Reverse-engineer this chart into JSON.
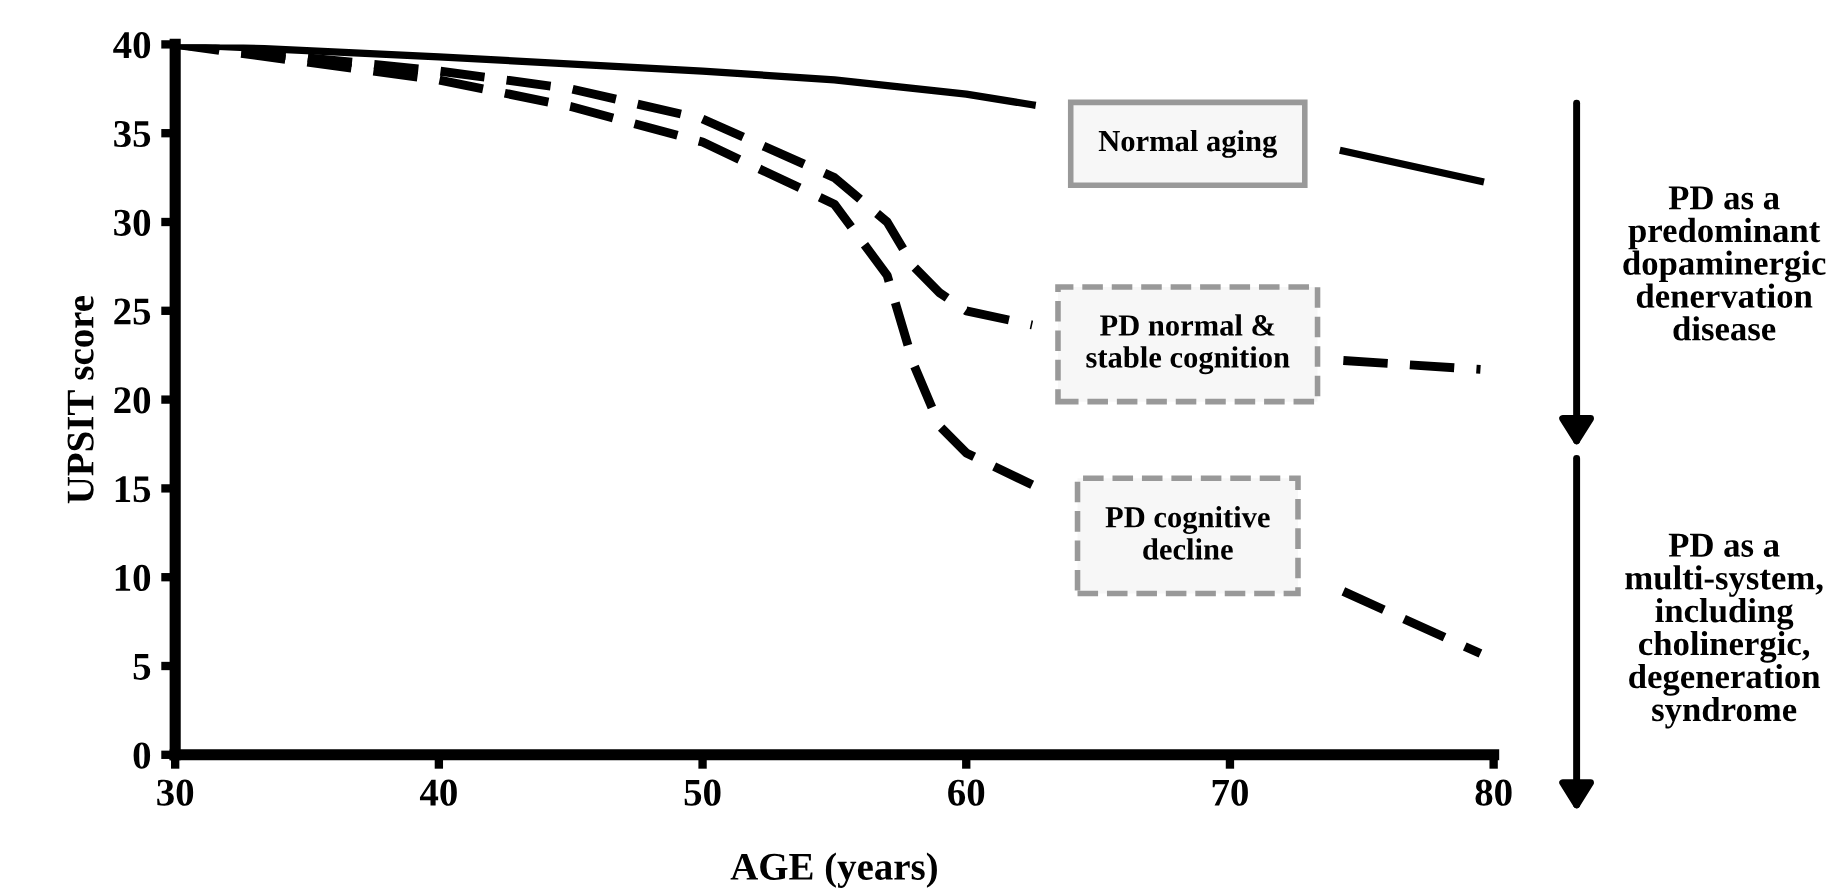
{
  "chart_data": {
    "type": "line",
    "xlabel": "AGE (years)",
    "ylabel": "UPSIT score",
    "xlim": [
      30,
      80
    ],
    "ylim": [
      0,
      40
    ],
    "xticks": [
      30,
      40,
      50,
      60,
      70,
      80
    ],
    "yticks": [
      0,
      5,
      10,
      15,
      20,
      25,
      30,
      35,
      40
    ],
    "grid": false,
    "legend": false,
    "marker": "none",
    "series": [
      {
        "color": "#000000",
        "line_style": "solid",
        "x": [
          30,
          40,
          50,
          55,
          60,
          62.5,
          68,
          74.3,
          79.5
        ],
        "values": [
          40,
          39.3,
          38.5,
          38,
          37.2,
          36.6,
          null,
          34,
          32.3
        ]
      },
      {
        "color": "#000000",
        "line_style": "dashed",
        "x": [
          30,
          40,
          45,
          50,
          55,
          57,
          58,
          59,
          60,
          62.5,
          68,
          74.3,
          79.5
        ],
        "values": [
          40,
          38.5,
          37.5,
          35.8,
          32.5,
          30,
          27.5,
          26,
          25,
          24.2,
          null,
          22.2,
          21.7
        ]
      },
      {
        "color": "#000000",
        "line_style": "dashed",
        "x": [
          30,
          40,
          45,
          50,
          55,
          57,
          58,
          59,
          60,
          62.5,
          68,
          74.3,
          79.5
        ],
        "values": [
          40,
          38,
          36.5,
          34.5,
          31,
          27,
          22,
          18.5,
          17,
          15.2,
          null,
          9.2,
          5.7
        ]
      }
    ],
    "annotations": [
      "Normal aging",
      "PD normal &\nstable cognition",
      "PD cognitive\ndecline",
      "PD as a\npredominant\ndopaminergic\ndenervation\ndisease",
      "PD as a\nmulti-system,\nincluding\ncholinergic,\ndegeneration\nsyndrome"
    ]
  }
}
